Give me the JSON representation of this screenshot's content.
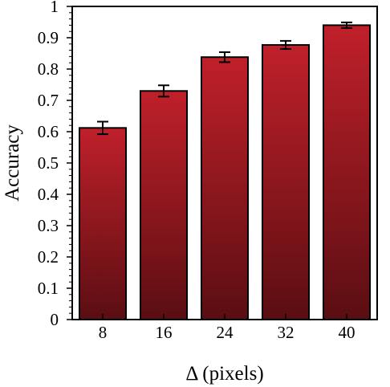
{
  "chart_data": {
    "type": "bar",
    "title": "",
    "xlabel": "Δ (pixels)",
    "ylabel": "Accuracy",
    "categories": [
      "8",
      "16",
      "24",
      "32",
      "40"
    ],
    "values": [
      0.612,
      0.73,
      0.838,
      0.877,
      0.94
    ],
    "errors": [
      0.02,
      0.018,
      0.016,
      0.013,
      0.009
    ],
    "ylim": [
      0,
      1
    ],
    "yticks": [
      "0",
      "0.1",
      "0.2",
      "0.3",
      "0.4",
      "0.5",
      "0.6",
      "0.7",
      "0.8",
      "0.9",
      "1"
    ],
    "grid": false,
    "legend": "none",
    "bar_color_top": "#c0202a",
    "bar_color_bottom": "#5a0e12"
  }
}
